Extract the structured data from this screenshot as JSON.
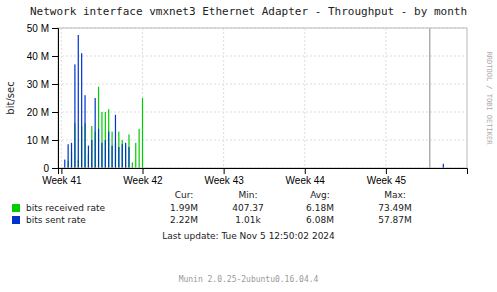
{
  "chart_data": {
    "type": "bar",
    "title": "Network interface vmxnet3 Ethernet Adapter - Throughput - by month",
    "ylabel": "bit/sec",
    "watermark": "RRDTOOL / TOBI OETIKER",
    "munin_version": "Munin 2.0.25-2ubuntu0.16.04.4",
    "last_update": "Last update:  Tue Nov  5 12:50:02 2024",
    "stats": {
      "headers": [
        "Cur:",
        "Min:",
        "Avg:",
        "Max:"
      ],
      "rows": [
        [
          "1.99M",
          "407.37",
          "6.18M",
          "73.49M"
        ],
        [
          "2.22M",
          "1.01k",
          "6.08M",
          "57.87M"
        ]
      ]
    },
    "x": [
      0,
      1,
      2,
      3,
      4,
      5,
      6,
      7,
      8,
      9,
      10,
      11,
      12,
      13,
      14,
      15,
      16,
      17,
      18,
      19,
      20,
      21,
      22,
      23,
      24,
      25,
      26,
      27,
      28,
      29,
      30,
      31,
      32,
      33,
      34,
      35,
      36,
      37,
      38,
      39,
      40,
      41,
      42,
      43,
      44,
      45,
      46,
      47,
      48,
      49,
      50,
      51,
      52,
      53,
      54,
      55,
      56,
      57,
      58,
      59,
      60,
      61,
      62,
      63,
      64,
      65,
      66,
      67,
      68,
      69,
      70,
      71,
      72,
      73,
      74,
      75,
      76,
      77,
      78,
      79,
      80,
      81,
      82,
      83,
      84,
      85,
      86,
      87,
      88,
      89,
      90,
      91,
      92,
      93,
      94,
      95,
      96,
      97,
      98,
      99,
      100,
      101,
      102,
      103,
      104,
      105,
      106,
      107,
      108,
      109,
      110,
      111,
      112,
      113,
      114,
      115,
      116,
      117,
      118,
      119
    ],
    "xlim": [
      -1,
      120
    ],
    "xticks": [
      {
        "value": 0,
        "label": "Week 41"
      },
      {
        "value": 24,
        "label": "Week 42"
      },
      {
        "value": 48,
        "label": "Week 43"
      },
      {
        "value": 72,
        "label": "Week 44"
      },
      {
        "value": 96,
        "label": "Week 45"
      }
    ],
    "ylim": [
      0,
      50000000
    ],
    "yticks": [
      0,
      {
        "value": 10000000,
        "label": "10 M"
      },
      {
        "value": 20000000,
        "label": "20 M"
      },
      {
        "value": 30000000,
        "label": "30 M"
      },
      {
        "value": 40000000,
        "label": "40 M"
      },
      {
        "value": 50000000,
        "label": "50 M"
      }
    ],
    "grid": true,
    "legend": "bottom",
    "current_x": 109,
    "series": [
      {
        "name": "bits received rate",
        "color": "#00cc00",
        "values": [
          0,
          0,
          2500000,
          6000000,
          16000000,
          3000000,
          15000000,
          16000000,
          5000000,
          15000000,
          13000000,
          29000000,
          20000000,
          20000000,
          21000000,
          13000000,
          9000000,
          13000000,
          10000000,
          8000000,
          12000000,
          2000000,
          9000000,
          14000000,
          25000000,
          0,
          0,
          0,
          0,
          0,
          0,
          0,
          0,
          0,
          0,
          0,
          0,
          0,
          0,
          0,
          0,
          0,
          0,
          0,
          0,
          0,
          0,
          0,
          0,
          0,
          0,
          0,
          0,
          0,
          0,
          0,
          0,
          0,
          0,
          0,
          0,
          0,
          0,
          0,
          0,
          0,
          0,
          0,
          0,
          0,
          0,
          0,
          0,
          0,
          0,
          0,
          0,
          0,
          0,
          0,
          0,
          0,
          0,
          0,
          0,
          0,
          0,
          0,
          0,
          0,
          0,
          0,
          0,
          0,
          0,
          0,
          0,
          0,
          0,
          0,
          0,
          0,
          0,
          0,
          0,
          0,
          0,
          0,
          0,
          0,
          0,
          0,
          0,
          500000,
          0,
          0,
          0,
          0,
          0,
          0
        ]
      },
      {
        "name": "bits sent rate",
        "color": "#0033cc",
        "values": [
          0,
          3000000,
          8500000,
          9000000,
          37000000,
          47500000,
          41000000,
          26000000,
          8000000,
          10000000,
          25000000,
          14000000,
          9000000,
          10000000,
          13000000,
          8000000,
          19000000,
          7500000,
          8500000,
          9000000,
          7500000,
          0,
          0,
          0,
          0,
          0,
          0,
          0,
          0,
          0,
          0,
          0,
          0,
          0,
          0,
          0,
          0,
          0,
          0,
          0,
          0,
          0,
          0,
          0,
          0,
          0,
          0,
          0,
          0,
          0,
          0,
          0,
          0,
          0,
          0,
          0,
          0,
          0,
          0,
          0,
          0,
          0,
          0,
          0,
          0,
          0,
          0,
          0,
          0,
          0,
          0,
          0,
          0,
          0,
          0,
          0,
          0,
          0,
          0,
          0,
          0,
          0,
          0,
          0,
          0,
          0,
          0,
          0,
          0,
          0,
          0,
          0,
          0,
          0,
          0,
          0,
          0,
          0,
          0,
          0,
          0,
          0,
          0,
          0,
          0,
          0,
          0,
          0,
          0,
          0,
          0,
          0,
          0,
          1500000,
          0,
          0,
          0,
          0,
          0,
          0
        ]
      }
    ]
  }
}
